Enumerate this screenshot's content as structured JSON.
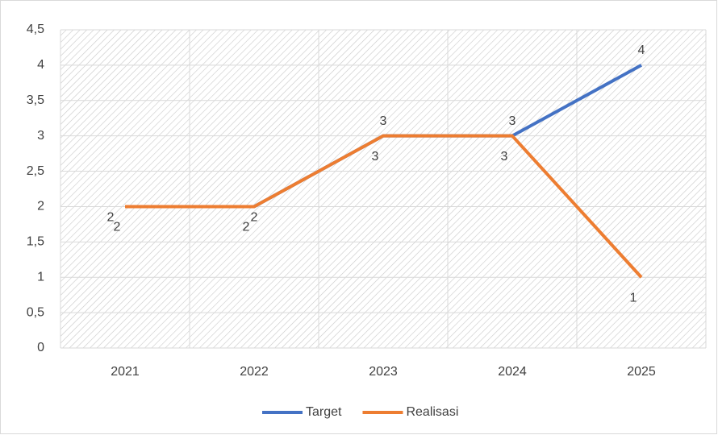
{
  "chart_data": {
    "type": "line",
    "categories": [
      "2021",
      "2022",
      "2023",
      "2024",
      "2025"
    ],
    "series": [
      {
        "name": "Target",
        "color": "#4472c4",
        "values": [
          2,
          2,
          3,
          3,
          4
        ]
      },
      {
        "name": "Realisasi",
        "color": "#ed7d31",
        "values": [
          2,
          2,
          3,
          3,
          1
        ]
      }
    ],
    "ylim": [
      0,
      4.5
    ],
    "yticks": [
      0,
      {
        "value": 0.5,
        "label": "0,5"
      },
      1,
      {
        "value": 1.5,
        "label": "1,5"
      },
      2,
      {
        "value": 2.5,
        "label": "2,5"
      },
      3,
      {
        "value": 3.5,
        "label": "3,5"
      },
      4,
      {
        "value": 4.5,
        "label": "4,5"
      }
    ],
    "grid": true,
    "legend": "bottom"
  }
}
